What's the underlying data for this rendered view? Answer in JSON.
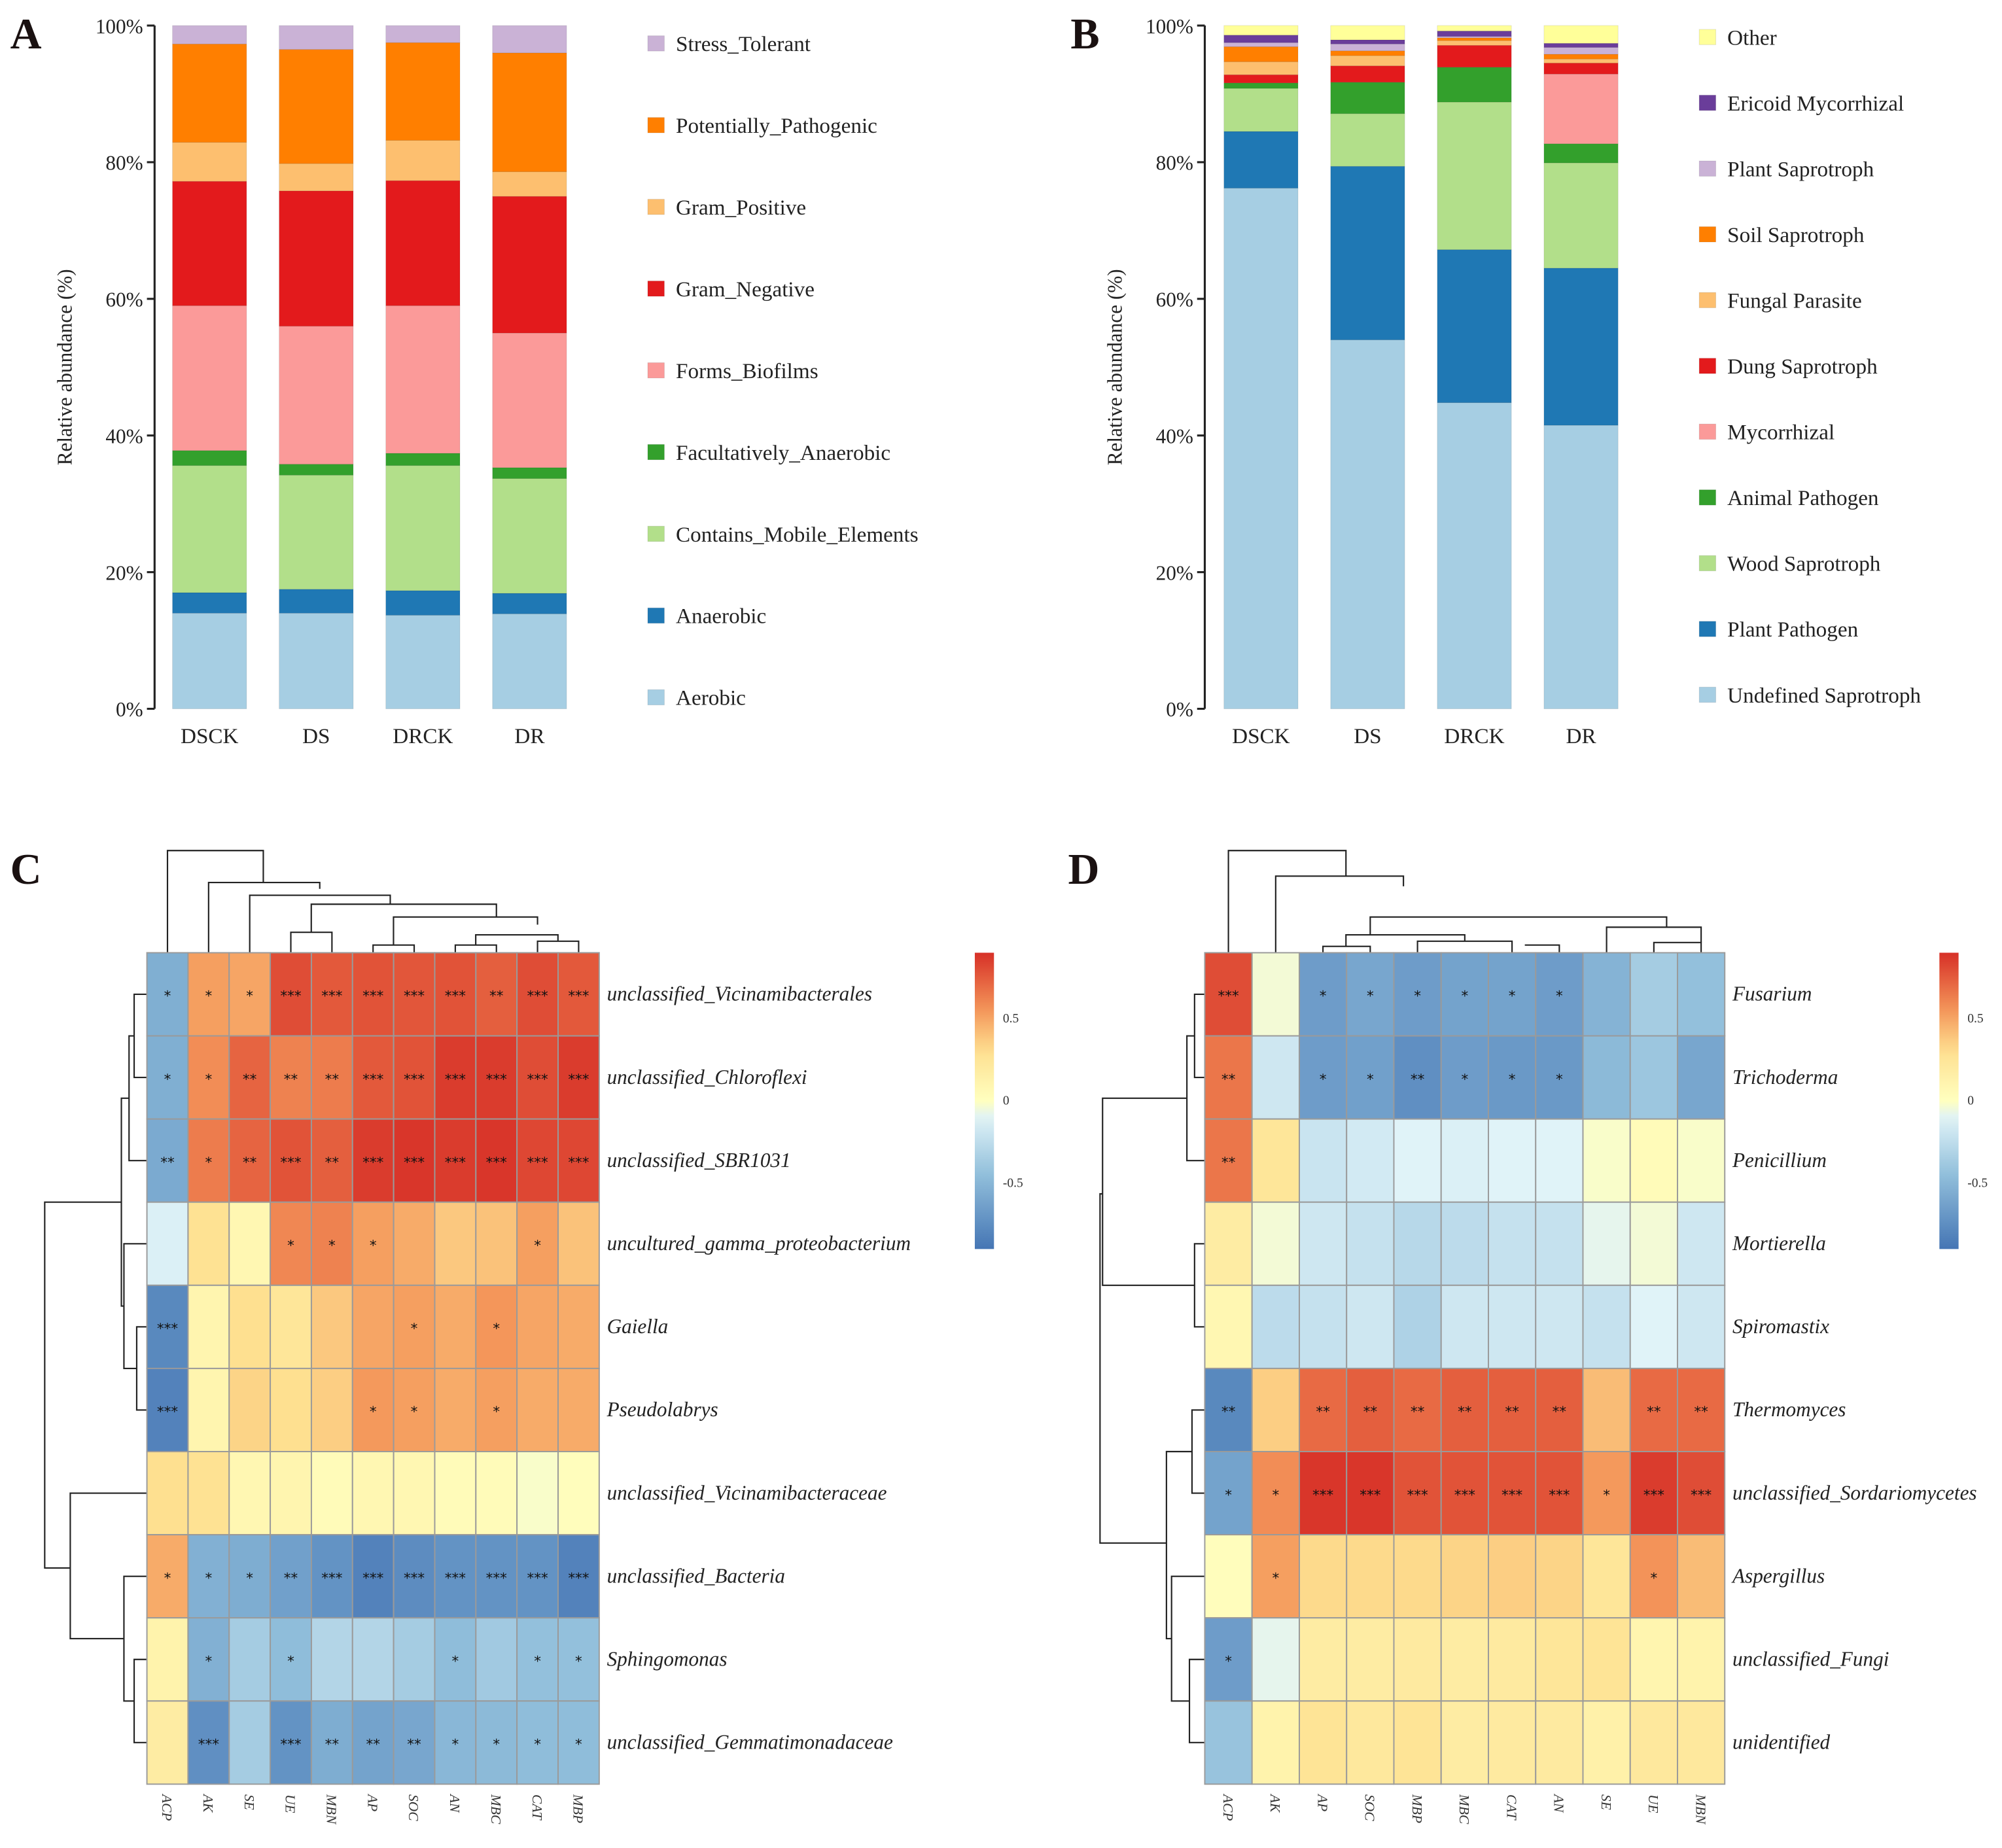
{
  "chart_data": [
    {
      "panel": "A",
      "type": "bar",
      "stacked": true,
      "title": "",
      "xlabel": "",
      "ylabel": "Relative abundance (%)",
      "ylim": [
        0,
        100
      ],
      "yticks": [
        "0%",
        "20%",
        "40%",
        "60%",
        "80%",
        "100%"
      ],
      "categories": [
        "DSCK",
        "DS",
        "DRCK",
        "DR"
      ],
      "legend_position": "right",
      "series": [
        {
          "name": "Aerobic",
          "color": "#a6cee3",
          "values": [
            14.0,
            14.0,
            13.7,
            13.9
          ]
        },
        {
          "name": "Anaerobic",
          "color": "#1f78b4",
          "values": [
            3.0,
            3.5,
            3.6,
            3.0
          ]
        },
        {
          "name": "Contains_Mobile_Elements",
          "color": "#b2df8a",
          "values": [
            18.6,
            16.7,
            18.3,
            16.8
          ]
        },
        {
          "name": "Facultatively_Anaerobic",
          "color": "#33a02c",
          "values": [
            2.2,
            1.6,
            1.8,
            1.6
          ]
        },
        {
          "name": "Forms_Biofilms",
          "color": "#fb9a99",
          "values": [
            21.2,
            20.2,
            21.6,
            19.7
          ]
        },
        {
          "name": "Gram_Negative",
          "color": "#e31a1c",
          "values": [
            18.2,
            19.8,
            18.3,
            20.0
          ]
        },
        {
          "name": "Gram_Positive",
          "color": "#fdbf6f",
          "values": [
            5.7,
            4.0,
            5.9,
            3.6
          ]
        },
        {
          "name": "Potentially_Pathogenic",
          "color": "#ff7f00",
          "values": [
            14.4,
            16.7,
            14.3,
            17.4
          ]
        },
        {
          "name": "Stress_Tolerant",
          "color": "#cab2d6",
          "values": [
            2.7,
            3.5,
            2.5,
            4.0
          ]
        }
      ]
    },
    {
      "panel": "B",
      "type": "bar",
      "stacked": true,
      "title": "",
      "xlabel": "",
      "ylabel": "Relative abundance (%)",
      "ylim": [
        0,
        100
      ],
      "yticks": [
        "0%",
        "20%",
        "40%",
        "60%",
        "80%",
        "100%"
      ],
      "categories": [
        "DSCK",
        "DS",
        "DRCK",
        "DR"
      ],
      "legend_position": "right",
      "series": [
        {
          "name": "Undefined Saprotroph",
          "color": "#a6cee3",
          "values": [
            76.2,
            54.0,
            44.8,
            41.5
          ]
        },
        {
          "name": "Plant Pathogen",
          "color": "#1f78b4",
          "values": [
            8.3,
            25.4,
            22.4,
            23.0
          ]
        },
        {
          "name": "Wood Saprotroph",
          "color": "#b2df8a",
          "values": [
            6.3,
            7.7,
            21.6,
            15.4
          ]
        },
        {
          "name": "Animal Pathogen",
          "color": "#33a02c",
          "values": [
            0.8,
            4.6,
            5.1,
            2.8
          ]
        },
        {
          "name": "Mycorrhizal",
          "color": "#fb9a99",
          "values": [
            0.0,
            0.0,
            0.0,
            10.2
          ]
        },
        {
          "name": "Dung Saprotroph",
          "color": "#e31a1c",
          "values": [
            1.2,
            2.4,
            3.2,
            1.6
          ]
        },
        {
          "name": "Fungal Parasite",
          "color": "#fdbf6f",
          "values": [
            1.9,
            1.5,
            0.7,
            0.6
          ]
        },
        {
          "name": "Soil Saprotroph",
          "color": "#ff7f00",
          "values": [
            2.2,
            0.7,
            0.4,
            0.7
          ]
        },
        {
          "name": "Plant Saprotroph",
          "color": "#cab2d6",
          "values": [
            0.6,
            1.0,
            0.2,
            1.0
          ]
        },
        {
          "name": "Ericoid Mycorrhizal",
          "color": "#6a3d9a",
          "values": [
            1.1,
            0.6,
            0.8,
            0.6
          ]
        },
        {
          "name": "Other",
          "color": "#ffff99",
          "values": [
            1.4,
            2.1,
            0.8,
            2.6
          ]
        }
      ]
    },
    {
      "panel": "C",
      "type": "heatmap",
      "title": "",
      "colorbar": {
        "ticks": [
          "0.5",
          "0",
          "-0.5"
        ],
        "range": [
          -0.9,
          0.9
        ],
        "colors": [
          "#4575b4",
          "#abd9e9",
          "#ffffbf",
          "#fdae61",
          "#d73027"
        ]
      },
      "columns": [
        "ACP",
        "AK",
        "SE",
        "UE",
        "MBN",
        "AP",
        "SOC",
        "AN",
        "MBC",
        "CAT",
        "MBP"
      ],
      "rows": [
        "unclassified_Vicinamibacterales",
        "unclassified_Chloroflexi",
        "unclassified_SBR1031",
        "uncultured_gamma_proteobacterium",
        "Gaiella",
        "Pseudolabrys",
        "unclassified_Vicinamibacteraceae",
        "unclassified_Bacteria",
        "Sphingomonas",
        "unclassified_Gemmatimonadaceae"
      ],
      "values": [
        [
          -0.55,
          0.52,
          0.5,
          0.8,
          0.76,
          0.78,
          0.77,
          0.78,
          0.74,
          0.8,
          0.76
        ],
        [
          -0.55,
          0.58,
          0.72,
          0.62,
          0.64,
          0.76,
          0.78,
          0.86,
          0.86,
          0.8,
          0.86
        ],
        [
          -0.58,
          0.64,
          0.72,
          0.78,
          0.74,
          0.86,
          0.88,
          0.86,
          0.88,
          0.82,
          0.82
        ],
        [
          -0.12,
          0.28,
          0.08,
          0.6,
          0.62,
          0.52,
          0.48,
          0.38,
          0.4,
          0.52,
          0.4
        ],
        [
          -0.78,
          0.1,
          0.3,
          0.24,
          0.38,
          0.5,
          0.52,
          0.48,
          0.55,
          0.5,
          0.48
        ],
        [
          -0.82,
          0.1,
          0.34,
          0.3,
          0.36,
          0.54,
          0.52,
          0.48,
          0.52,
          0.48,
          0.48
        ],
        [
          0.3,
          0.28,
          0.08,
          0.1,
          0.04,
          0.08,
          0.08,
          0.04,
          0.04,
          -0.02,
          0.02
        ],
        [
          0.48,
          -0.54,
          -0.56,
          -0.64,
          -0.72,
          -0.82,
          -0.76,
          -0.72,
          -0.72,
          -0.72,
          -0.82
        ],
        [
          0.12,
          -0.54,
          -0.36,
          -0.46,
          -0.3,
          -0.3,
          -0.36,
          -0.46,
          -0.38,
          -0.44,
          -0.44
        ],
        [
          0.18,
          -0.74,
          -0.36,
          -0.72,
          -0.56,
          -0.62,
          -0.6,
          -0.5,
          -0.48,
          -0.46,
          -0.46
        ]
      ],
      "significance": [
        [
          "*",
          "*",
          "*",
          "***",
          "***",
          "***",
          "***",
          "***",
          "**",
          "***",
          "***"
        ],
        [
          "*",
          "*",
          "**",
          "**",
          "**",
          "***",
          "***",
          "***",
          "***",
          "***",
          "***"
        ],
        [
          "**",
          "*",
          "**",
          "***",
          "**",
          "***",
          "***",
          "***",
          "***",
          "***",
          "***"
        ],
        [
          "",
          "",
          "",
          "*",
          "*",
          "*",
          "",
          "",
          "",
          "*",
          ""
        ],
        [
          "***",
          "",
          "",
          "",
          "",
          "",
          "*",
          "",
          "*",
          "",
          ""
        ],
        [
          "***",
          "",
          "",
          "",
          "",
          "*",
          "*",
          "",
          "*",
          "",
          ""
        ],
        [
          "",
          "",
          "",
          "",
          "",
          "",
          "",
          "",
          "",
          "",
          ""
        ],
        [
          "*",
          "*",
          "*",
          "**",
          "***",
          "***",
          "***",
          "***",
          "***",
          "***",
          "***"
        ],
        [
          "",
          "*",
          "",
          "*",
          "",
          "",
          "",
          "*",
          "",
          "*",
          "*"
        ],
        [
          "",
          "***",
          "",
          "***",
          "**",
          "**",
          "**",
          "*",
          "*",
          "*",
          "*"
        ]
      ]
    },
    {
      "panel": "D",
      "type": "heatmap",
      "title": "",
      "colorbar": {
        "ticks": [
          "0.5",
          "0",
          "-0.5"
        ],
        "range": [
          -0.9,
          0.9
        ],
        "colors": [
          "#4575b4",
          "#abd9e9",
          "#ffffbf",
          "#fdae61",
          "#d73027"
        ]
      },
      "columns": [
        "ACP",
        "AK",
        "AP",
        "SOC",
        "MBP",
        "MBC",
        "CAT",
        "AN",
        "SE",
        "UE",
        "MBN"
      ],
      "rows": [
        "Fusarium",
        "Trichoderma",
        "Penicillium",
        "Mortierella",
        "Spiromastix",
        "Thermomyces",
        "unclassified_Sordariomycetes",
        "Aspergillus",
        "unclassified_Fungi",
        "unidentified"
      ],
      "values": [
        [
          0.8,
          -0.04,
          -0.66,
          -0.6,
          -0.66,
          -0.62,
          -0.62,
          -0.66,
          -0.52,
          -0.36,
          -0.44
        ],
        [
          0.66,
          -0.18,
          -0.66,
          -0.64,
          -0.74,
          -0.66,
          -0.68,
          -0.68,
          -0.48,
          -0.4,
          -0.6
        ],
        [
          0.66,
          0.24,
          -0.2,
          -0.16,
          -0.1,
          -0.12,
          -0.1,
          -0.1,
          -0.02,
          0.04,
          -0.02
        ],
        [
          0.18,
          -0.04,
          -0.18,
          -0.22,
          -0.28,
          -0.26,
          -0.22,
          -0.22,
          -0.08,
          -0.04,
          -0.18
        ],
        [
          0.08,
          -0.26,
          -0.22,
          -0.18,
          -0.32,
          -0.18,
          -0.18,
          -0.18,
          -0.22,
          -0.1,
          -0.18
        ],
        [
          -0.78,
          0.36,
          0.7,
          0.74,
          0.7,
          0.74,
          0.74,
          0.74,
          0.42,
          0.7,
          0.7
        ],
        [
          -0.62,
          0.58,
          0.88,
          0.88,
          0.78,
          0.78,
          0.78,
          0.78,
          0.54,
          0.86,
          0.8
        ],
        [
          0.02,
          0.52,
          0.32,
          0.32,
          0.32,
          0.34,
          0.36,
          0.34,
          0.24,
          0.56,
          0.42
        ],
        [
          -0.66,
          -0.08,
          0.18,
          0.18,
          0.2,
          0.18,
          0.2,
          0.24,
          0.26,
          0.1,
          0.12
        ],
        [
          -0.42,
          0.12,
          0.26,
          0.22,
          0.26,
          0.18,
          0.2,
          0.2,
          0.14,
          0.22,
          0.22
        ]
      ],
      "significance": [
        [
          "***",
          "",
          "*",
          "*",
          "*",
          "*",
          "*",
          "*",
          "",
          "",
          ""
        ],
        [
          "**",
          "",
          "*",
          "*",
          "**",
          "*",
          "*",
          "*",
          "",
          "",
          ""
        ],
        [
          "**",
          "",
          "",
          "",
          "",
          "",
          "",
          "",
          "",
          "",
          ""
        ],
        [
          "",
          "",
          "",
          "",
          "",
          "",
          "",
          "",
          "",
          "",
          ""
        ],
        [
          "",
          "",
          "",
          "",
          "",
          "",
          "",
          "",
          "",
          "",
          ""
        ],
        [
          "**",
          "",
          "**",
          "**",
          "**",
          "**",
          "**",
          "**",
          "",
          "**",
          "**"
        ],
        [
          "*",
          "*",
          "***",
          "***",
          "***",
          "***",
          "***",
          "***",
          "*",
          "***",
          "***"
        ],
        [
          "",
          "*",
          "",
          "",
          "",
          "",
          "",
          "",
          "",
          "*",
          ""
        ],
        [
          "*",
          "",
          "",
          "",
          "",
          "",
          "",
          "",
          "",
          "",
          ""
        ],
        [
          "",
          "",
          "",
          "",
          "",
          "",
          "",
          "",
          "",
          "",
          ""
        ]
      ]
    }
  ],
  "panels": {
    "A": {
      "letter": "A"
    },
    "B": {
      "letter": "B"
    },
    "C": {
      "letter": "C"
    },
    "D": {
      "letter": "D"
    }
  }
}
